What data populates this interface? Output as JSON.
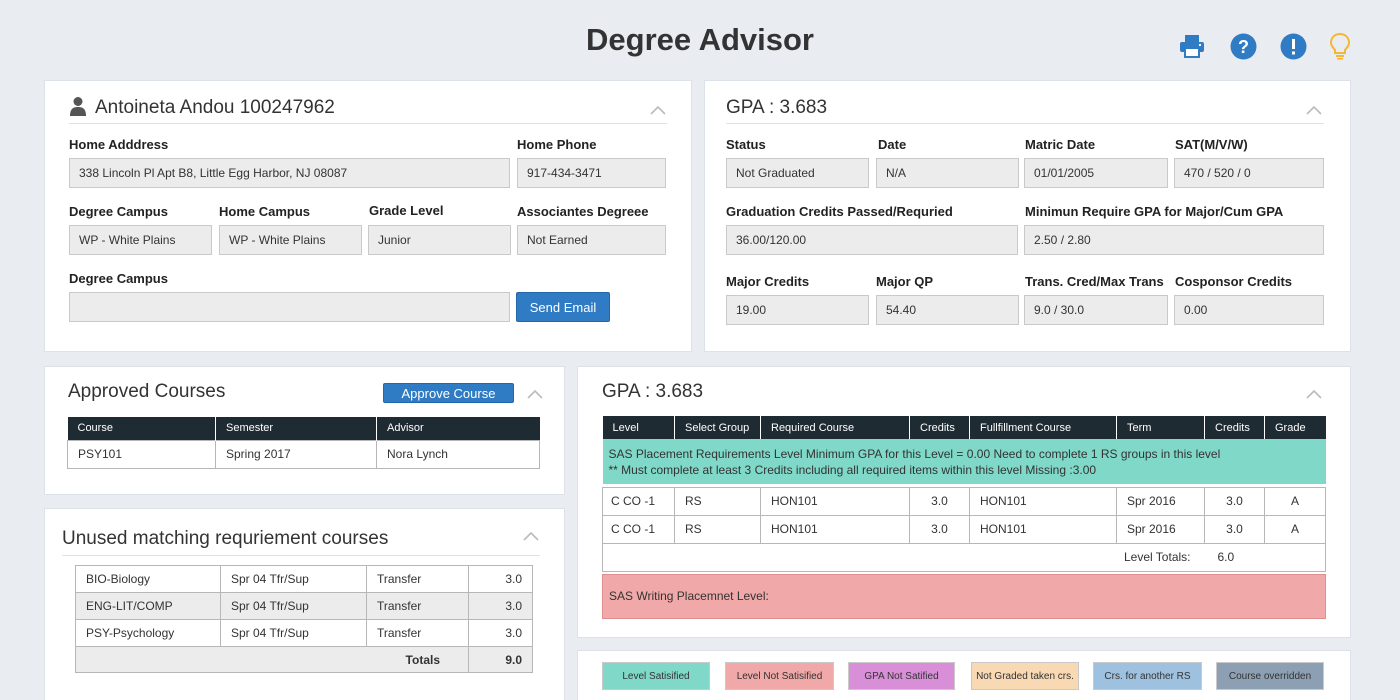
{
  "header": {
    "title": "Degree Advisor"
  },
  "colors": {
    "accent": "#2f7bc4",
    "teal_row": "#7fd8c8",
    "red_row": "#f0a8a8",
    "table_header": "#1e2b33",
    "bulb": "#f5b731"
  },
  "icons": [
    "print-icon",
    "help-icon",
    "alert-icon",
    "lightbulb-icon",
    "user-icon",
    "chevron-up-icon"
  ],
  "student": {
    "name": "Antoineta Andou 100247962",
    "home_address_label": "Home Adddress",
    "home_address": "338 Lincoln Pl Apt B8, Little Egg Harbor, NJ  08087",
    "home_phone_label": "Home Phone",
    "home_phone": "917-434-3471",
    "degree_campus_label": "Degree Campus",
    "degree_campus": "WP - White Plains",
    "home_campus_label": "Home Campus",
    "home_campus": "WP - White Plains",
    "grade_level_label": "Grade Level",
    "grade_level": "Junior",
    "associates_label": "Associantes Degreee",
    "associates": "Not Earned",
    "degree_campus2_label": "Degree Campus",
    "degree_campus2": "",
    "send_email": "Send Email"
  },
  "gpa_panel": {
    "title": "GPA : 3.683",
    "status_label": "Status",
    "status": "Not Graduated",
    "date_label": "Date",
    "date": "N/A",
    "matric_label": "Matric Date",
    "matric": "01/01/2005",
    "sat_label": "SAT(M/V/W)",
    "sat": "470 / 520 / 0",
    "grad_credits_label": "Graduation Credits Passed/Requried",
    "grad_credits": "36.00/120.00",
    "min_gpa_label": "Minimun Require GPA for Major/Cum GPA",
    "min_gpa": "2.50 / 2.80",
    "major_credits_label": "Major Credits",
    "major_credits": "19.00",
    "major_qp_label": "Major QP",
    "major_qp": "54.40",
    "trans_label": "Trans. Cred/Max Trans",
    "trans": "9.0 / 30.0",
    "cosponsor_label": "Cosponsor Credits",
    "cosponsor": "0.00"
  },
  "approved": {
    "title": "Approved Courses",
    "approve_button": "Approve Course",
    "columns": [
      "Course",
      "Semester",
      "Advisor"
    ],
    "rows": [
      [
        "PSY101",
        "Spring 2017",
        "Nora Lynch"
      ]
    ]
  },
  "unused": {
    "title": "Unused matching requriement courses",
    "rows": [
      [
        "BIO-Biology",
        "Spr 04 Tfr/Sup",
        "Transfer",
        "3.0"
      ],
      [
        "ENG-LIT/COMP",
        "Spr 04 Tfr/Sup",
        "Transfer",
        "3.0"
      ],
      [
        "PSY-Psychology",
        "Spr 04 Tfr/Sup",
        "Transfer",
        "3.0"
      ]
    ],
    "totals_label": "Totals",
    "totals": "9.0"
  },
  "requirements": {
    "title": "GPA : 3.683",
    "columns": [
      "Level",
      "Select Group",
      "Required Course",
      "Credits",
      "Fullfillment Course",
      "Term",
      "Credits",
      "Grade"
    ],
    "note_line1": "SAS Placement Requirements Level Minimum GPA for this Level = 0.00 Need to complete 1 RS groups in this level",
    "note_line2": "** Must complete at least 3 Credits including all required items within this level Missing :3.00",
    "rows": [
      [
        "C CO -1",
        "RS",
        "HON101",
        "3.0",
        "HON101",
        "Spr 2016",
        "3.0",
        "A"
      ],
      [
        "C CO -1",
        "RS",
        "HON101",
        "3.0",
        "HON101",
        "Spr 2016",
        "3.0",
        "A"
      ]
    ],
    "level_totals_label": "Level Totals:",
    "level_totals": "6.0",
    "writing_level": "SAS Writing Placemnet Level:"
  },
  "legend": [
    {
      "label": "Level Satisified",
      "color": "#7fd8c8"
    },
    {
      "label": "Level Not Satisified",
      "color": "#f0a8a8"
    },
    {
      "label": "GPA Not Satified",
      "color": "#d98fd8"
    },
    {
      "label": "Not Graded taken crs.",
      "color": "#f8d9b4"
    },
    {
      "label": "Crs. for another RS",
      "color": "#9ec1e0"
    },
    {
      "label": "Course overridden",
      "color": "#8c9fb3"
    }
  ]
}
